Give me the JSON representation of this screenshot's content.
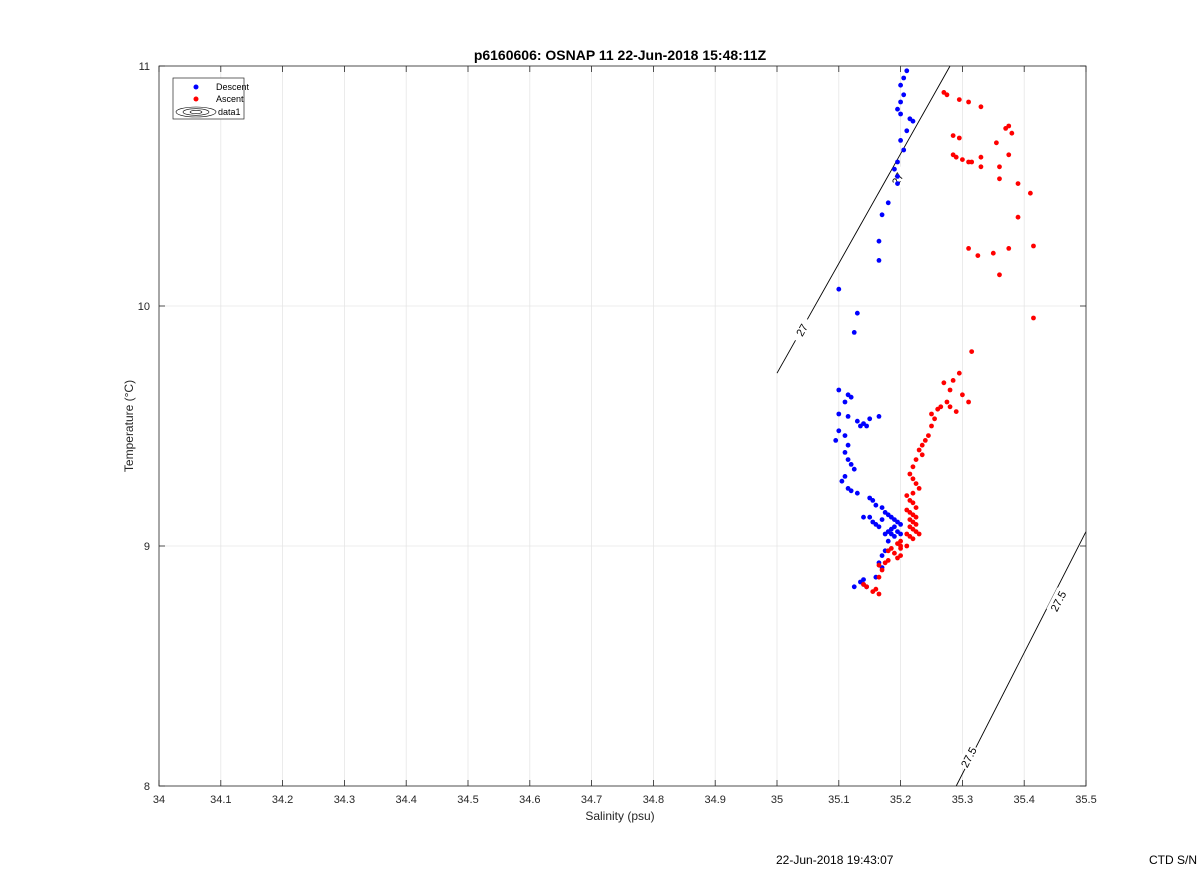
{
  "chart_data": {
    "type": "scatter",
    "title": "p6160606: OSNAP 11 22-Jun-2018 15:48:11Z",
    "xlabel": "Salinity (psu)",
    "ylabel": "Temperature (°C)",
    "xlim": [
      34,
      35.5
    ],
    "ylim": [
      8,
      11
    ],
    "xticks": [
      "34",
      "34.1",
      "34.2",
      "34.3",
      "34.4",
      "34.5",
      "34.6",
      "34.7",
      "34.8",
      "34.9",
      "35",
      "35.1",
      "35.2",
      "35.3",
      "35.4",
      "35.5"
    ],
    "yticks": [
      "8",
      "9",
      "10",
      "11"
    ],
    "grid": true,
    "legend_position": "top-left",
    "legend": [
      "Descent",
      "Ascent",
      "data1"
    ],
    "series": [
      {
        "name": "Descent",
        "color": "#0000ff",
        "points": [
          [
            35.21,
            10.98
          ],
          [
            35.205,
            10.95
          ],
          [
            35.2,
            10.92
          ],
          [
            35.205,
            10.88
          ],
          [
            35.2,
            10.85
          ],
          [
            35.195,
            10.82
          ],
          [
            35.2,
            10.8
          ],
          [
            35.215,
            10.78
          ],
          [
            35.22,
            10.77
          ],
          [
            35.21,
            10.73
          ],
          [
            35.2,
            10.69
          ],
          [
            35.205,
            10.65
          ],
          [
            35.195,
            10.6
          ],
          [
            35.19,
            10.57
          ],
          [
            35.195,
            10.54
          ],
          [
            35.195,
            10.51
          ],
          [
            35.18,
            10.43
          ],
          [
            35.17,
            10.38
          ],
          [
            35.165,
            10.27
          ],
          [
            35.165,
            10.19
          ],
          [
            35.1,
            10.07
          ],
          [
            35.13,
            9.97
          ],
          [
            35.125,
            9.89
          ],
          [
            35.1,
            9.65
          ],
          [
            35.115,
            9.63
          ],
          [
            35.12,
            9.62
          ],
          [
            35.11,
            9.6
          ],
          [
            35.1,
            9.55
          ],
          [
            35.115,
            9.54
          ],
          [
            35.13,
            9.52
          ],
          [
            35.135,
            9.5
          ],
          [
            35.15,
            9.53
          ],
          [
            35.165,
            9.54
          ],
          [
            35.14,
            9.51
          ],
          [
            35.145,
            9.5
          ],
          [
            35.1,
            9.48
          ],
          [
            35.095,
            9.44
          ],
          [
            35.11,
            9.46
          ],
          [
            35.115,
            9.42
          ],
          [
            35.11,
            9.39
          ],
          [
            35.115,
            9.36
          ],
          [
            35.12,
            9.34
          ],
          [
            35.125,
            9.32
          ],
          [
            35.11,
            9.29
          ],
          [
            35.105,
            9.27
          ],
          [
            35.115,
            9.24
          ],
          [
            35.12,
            9.23
          ],
          [
            35.13,
            9.22
          ],
          [
            35.15,
            9.2
          ],
          [
            35.155,
            9.19
          ],
          [
            35.16,
            9.17
          ],
          [
            35.17,
            9.16
          ],
          [
            35.175,
            9.14
          ],
          [
            35.18,
            9.13
          ],
          [
            35.185,
            9.12
          ],
          [
            35.19,
            9.11
          ],
          [
            35.195,
            9.1
          ],
          [
            35.2,
            9.09
          ],
          [
            35.19,
            9.08
          ],
          [
            35.185,
            9.07
          ],
          [
            35.18,
            9.06
          ],
          [
            35.175,
            9.05
          ],
          [
            35.185,
            9.05
          ],
          [
            35.19,
            9.04
          ],
          [
            35.195,
            9.06
          ],
          [
            35.2,
            9.05
          ],
          [
            35.16,
            9.09
          ],
          [
            35.165,
            9.08
          ],
          [
            35.17,
            9.11
          ],
          [
            35.155,
            9.1
          ],
          [
            35.14,
            9.12
          ],
          [
            35.15,
            9.12
          ],
          [
            35.18,
            9.02
          ],
          [
            35.175,
            8.98
          ],
          [
            35.17,
            8.96
          ],
          [
            35.165,
            8.93
          ],
          [
            35.17,
            8.91
          ],
          [
            35.16,
            8.87
          ],
          [
            35.14,
            8.86
          ],
          [
            35.135,
            8.85
          ],
          [
            35.14,
            8.84
          ],
          [
            35.145,
            8.83
          ],
          [
            35.125,
            8.83
          ]
        ]
      },
      {
        "name": "Ascent",
        "color": "#ff0000",
        "points": [
          [
            35.27,
            10.89
          ],
          [
            35.275,
            10.88
          ],
          [
            35.295,
            10.86
          ],
          [
            35.31,
            10.85
          ],
          [
            35.33,
            10.83
          ],
          [
            35.375,
            10.75
          ],
          [
            35.37,
            10.74
          ],
          [
            35.38,
            10.72
          ],
          [
            35.285,
            10.71
          ],
          [
            35.295,
            10.7
          ],
          [
            35.355,
            10.68
          ],
          [
            35.375,
            10.63
          ],
          [
            35.285,
            10.63
          ],
          [
            35.29,
            10.62
          ],
          [
            35.3,
            10.61
          ],
          [
            35.31,
            10.6
          ],
          [
            35.33,
            10.62
          ],
          [
            35.315,
            10.6
          ],
          [
            35.33,
            10.58
          ],
          [
            35.36,
            10.58
          ],
          [
            35.36,
            10.53
          ],
          [
            35.39,
            10.51
          ],
          [
            35.41,
            10.47
          ],
          [
            35.39,
            10.37
          ],
          [
            35.31,
            10.24
          ],
          [
            35.325,
            10.21
          ],
          [
            35.35,
            10.22
          ],
          [
            35.375,
            10.24
          ],
          [
            35.415,
            10.25
          ],
          [
            35.36,
            10.13
          ],
          [
            35.415,
            9.95
          ],
          [
            35.315,
            9.81
          ],
          [
            35.295,
            9.72
          ],
          [
            35.285,
            9.69
          ],
          [
            35.27,
            9.68
          ],
          [
            35.28,
            9.65
          ],
          [
            35.3,
            9.63
          ],
          [
            35.275,
            9.6
          ],
          [
            35.28,
            9.58
          ],
          [
            35.29,
            9.56
          ],
          [
            35.265,
            9.58
          ],
          [
            35.26,
            9.57
          ],
          [
            35.25,
            9.55
          ],
          [
            35.255,
            9.53
          ],
          [
            35.25,
            9.5
          ],
          [
            35.245,
            9.46
          ],
          [
            35.24,
            9.44
          ],
          [
            35.235,
            9.42
          ],
          [
            35.23,
            9.4
          ],
          [
            35.235,
            9.38
          ],
          [
            35.225,
            9.36
          ],
          [
            35.22,
            9.33
          ],
          [
            35.215,
            9.3
          ],
          [
            35.22,
            9.28
          ],
          [
            35.225,
            9.26
          ],
          [
            35.23,
            9.24
          ],
          [
            35.22,
            9.22
          ],
          [
            35.21,
            9.21
          ],
          [
            35.215,
            9.19
          ],
          [
            35.22,
            9.18
          ],
          [
            35.225,
            9.16
          ],
          [
            35.21,
            9.15
          ],
          [
            35.215,
            9.14
          ],
          [
            35.22,
            9.13
          ],
          [
            35.225,
            9.12
          ],
          [
            35.215,
            9.11
          ],
          [
            35.22,
            9.1
          ],
          [
            35.225,
            9.09
          ],
          [
            35.215,
            9.08
          ],
          [
            35.22,
            9.07
          ],
          [
            35.225,
            9.06
          ],
          [
            35.21,
            9.05
          ],
          [
            35.215,
            9.04
          ],
          [
            35.22,
            9.03
          ],
          [
            35.2,
            9.02
          ],
          [
            35.195,
            9.01
          ],
          [
            35.21,
            9.0
          ],
          [
            35.2,
            8.99
          ],
          [
            35.185,
            8.99
          ],
          [
            35.18,
            8.98
          ],
          [
            35.19,
            8.97
          ],
          [
            35.2,
            8.96
          ],
          [
            35.195,
            8.95
          ],
          [
            35.18,
            8.94
          ],
          [
            35.175,
            8.93
          ],
          [
            35.165,
            8.92
          ],
          [
            35.17,
            8.9
          ],
          [
            35.165,
            8.87
          ],
          [
            35.16,
            8.82
          ],
          [
            35.165,
            8.8
          ],
          [
            35.155,
            8.81
          ],
          [
            35.145,
            8.83
          ],
          [
            35.14,
            8.84
          ],
          [
            35.31,
            9.6
          ],
          [
            35.2,
            9.0
          ],
          [
            35.23,
            9.05
          ]
        ]
      }
    ],
    "contours": [
      {
        "level": "27",
        "line": [
          [
            35.0,
            9.72
          ],
          [
            35.28,
            11.0
          ]
        ],
        "labels": [
          [
            35.04,
            9.9
          ],
          [
            35.195,
            10.53
          ]
        ]
      },
      {
        "level": "27.5",
        "line": [
          [
            35.29,
            8.0
          ],
          [
            35.5,
            9.06
          ]
        ],
        "labels": [
          [
            35.31,
            8.12
          ],
          [
            35.455,
            8.77
          ]
        ]
      }
    ]
  },
  "footer": {
    "timestamp": "22-Jun-2018 19:43:07",
    "serial": "CTD S/N"
  }
}
